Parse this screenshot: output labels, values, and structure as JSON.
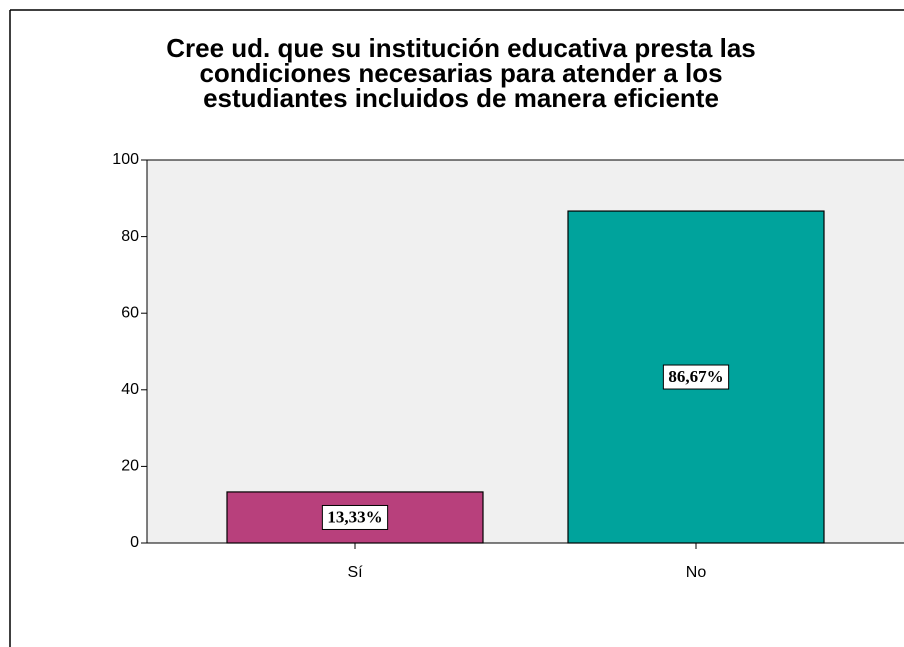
{
  "chart_data": {
    "type": "bar",
    "title": [
      "Cree ud. que su institución educativa presta las",
      "condiciones necesarias para atender a los",
      "estudiantes incluidos de manera eficiente"
    ],
    "categories": [
      "Sí",
      "No"
    ],
    "values": [
      13.33,
      86.67
    ],
    "value_labels": [
      "13,33%",
      "86,67%"
    ],
    "colors": [
      "#b8407c",
      "#00a39c"
    ],
    "ylim": [
      0,
      100
    ],
    "yticks": [
      0,
      20,
      40,
      60,
      80,
      100
    ],
    "grid": false
  }
}
